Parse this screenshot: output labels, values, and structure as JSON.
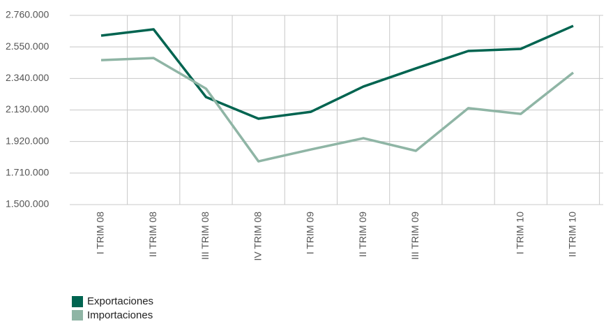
{
  "chart_data": {
    "type": "line",
    "categories": [
      "I TRIM 08",
      "II TRIM 08",
      "III TRIM 08",
      "IV TRIM 08",
      "I TRIM 09",
      "II TRIM 09",
      "III TRIM 09",
      null,
      "I TRIM 10",
      "II TRIM 10"
    ],
    "series": [
      {
        "name": "Exportaciones",
        "color": "#006450",
        "values": [
          2625000,
          2667000,
          2216000,
          2072000,
          2118000,
          2286000,
          2407000,
          2523000,
          2537000,
          2690000
        ]
      },
      {
        "name": "Importaciones",
        "color": "#8fb5a5",
        "values": [
          2462000,
          2476000,
          2272000,
          1788000,
          1867000,
          1942000,
          1858000,
          2142000,
          2104000,
          2379000
        ]
      }
    ],
    "ylim": [
      1500000,
      2760000
    ],
    "yticks": [
      {
        "value": 1500000,
        "label": "1.500.000"
      },
      {
        "value": 1710000,
        "label": "1.710.000"
      },
      {
        "value": 1920000,
        "label": "1.920.000"
      },
      {
        "value": 2130000,
        "label": "2.130.000"
      },
      {
        "value": 2340000,
        "label": "2.340.000"
      },
      {
        "value": 2550000,
        "label": "2.550.000"
      },
      {
        "value": 2760000,
        "label": "2.760.000"
      }
    ],
    "grid": true
  }
}
